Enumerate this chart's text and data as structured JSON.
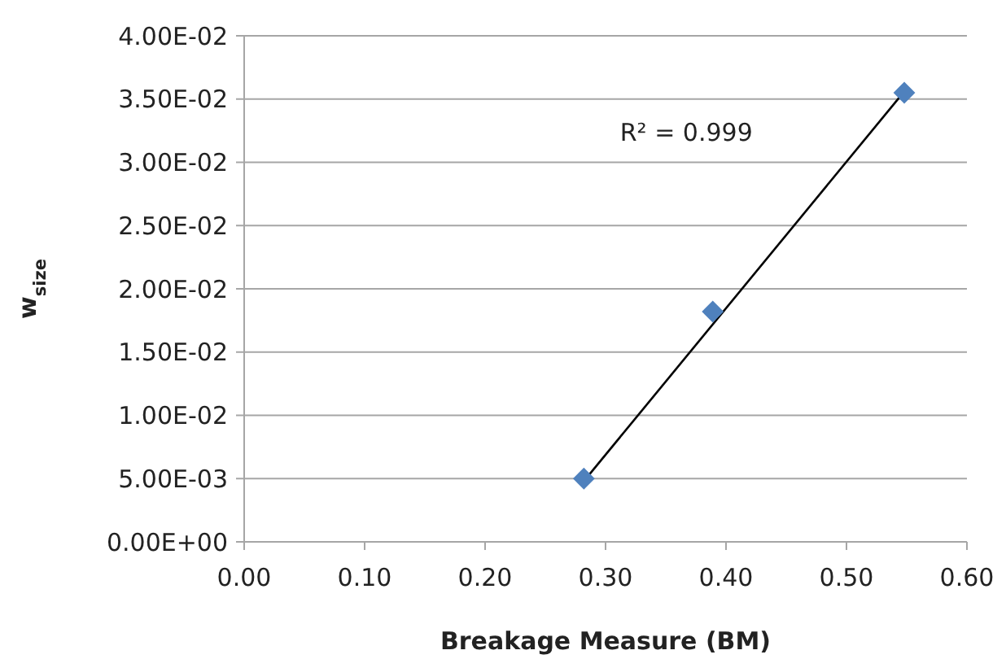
{
  "chart_data": {
    "type": "scatter",
    "xlabel": "Breakage Measure (BM)",
    "ylabel": "w$_{size}$",
    "series": [
      {
        "color": "#4f81bd",
        "x": [
          0.282,
          0.389,
          0.548
        ],
        "values": [
          0.005,
          0.0182,
          0.0355
        ],
        "marker": "diamond"
      },
      {
        "type": "line",
        "color": "#000000",
        "x": [
          0.282,
          0.548
        ],
        "values": [
          0.0048,
          0.0356
        ],
        "marker": "none",
        "line_style": "solid"
      }
    ],
    "annotations": [
      "R² = 0.999"
    ],
    "xlim": [
      0,
      0.6
    ],
    "ylim": [
      0,
      0.04
    ],
    "xticks": [
      {
        "value": 0,
        "label": "0.00"
      },
      {
        "value": 0.1,
        "label": "0.10"
      },
      {
        "value": 0.2,
        "label": "0.20"
      },
      {
        "value": 0.3,
        "label": "0.30"
      },
      {
        "value": 0.4,
        "label": "0.40"
      },
      {
        "value": 0.5,
        "label": "0.50"
      },
      {
        "value": 0.6,
        "label": "0.60"
      }
    ],
    "yticks": [
      {
        "value": 0,
        "label": "0.00E+00"
      },
      {
        "value": 0.005,
        "label": "5.00E-03"
      },
      {
        "value": 0.01,
        "label": "1.00E-02"
      },
      {
        "value": 0.015,
        "label": "1.50E-02"
      },
      {
        "value": 0.02,
        "label": "2.00E-02"
      },
      {
        "value": 0.025,
        "label": "2.50E-02"
      },
      {
        "value": 0.03,
        "label": "3.00E-02"
      },
      {
        "value": 0.035,
        "label": "3.50E-02"
      },
      {
        "value": 0.04,
        "label": "4.00E-02"
      }
    ],
    "grid": "y"
  }
}
